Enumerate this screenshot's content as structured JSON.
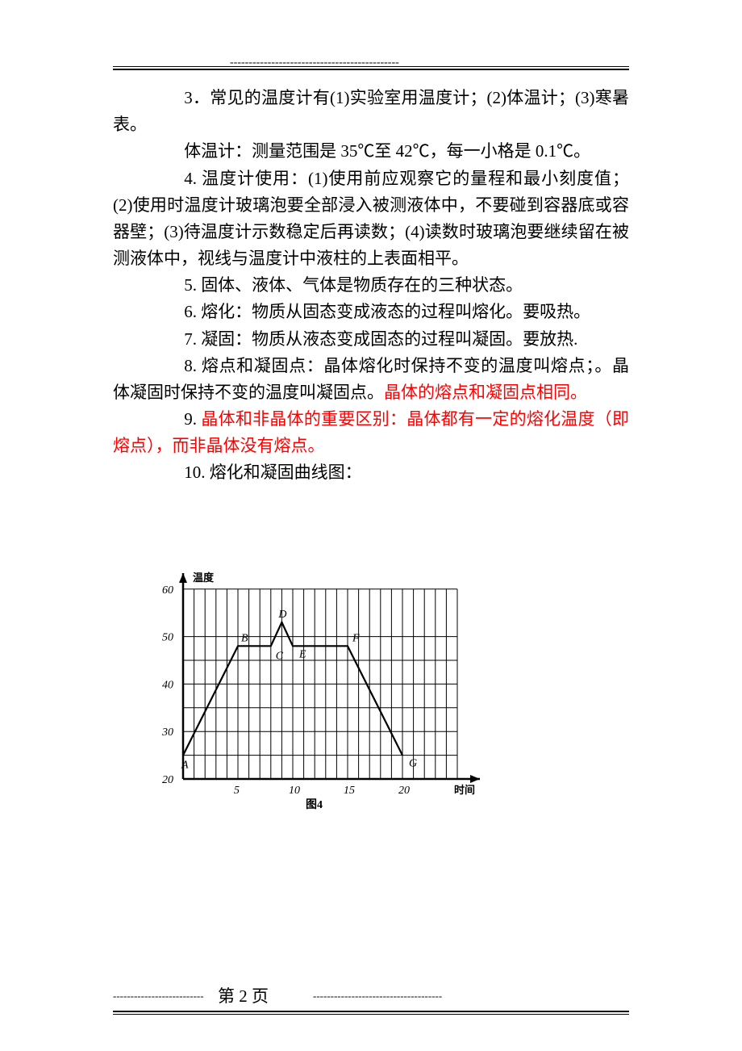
{
  "header": {
    "dashes": "---------------------------------------------"
  },
  "paragraphs": {
    "p3": "3．常见的温度计有(1)实验室用温度计；(2)体温计；(3)寒暑表。",
    "p3b": "体温计：测量范围是 35℃至 42℃，每一小格是 0.1℃。",
    "p4": "4. 温度计使用：(1)使用前应观察它的量程和最小刻度值；(2)使用时温度计玻璃泡要全部浸入被测液体中，不要碰到容器底或容器壁；(3)待温度计示数稳定后再读数；(4)读数时玻璃泡要继续留在被测液体中，视线与温度计中液柱的上表面相平。",
    "p5": "5. 固体、液体、气体是物质存在的三种状态。",
    "p6": "6. 熔化：物质从固态变成液态的过程叫熔化。要吸热。",
    "p7": "7. 凝固：物质从液态变成固态的过程叫凝固。要放热.",
    "p8a": "8. 熔点和凝固点：晶体熔化时保持不变的温度叫熔点；。晶体凝固时保持不变的温度叫凝固点。",
    "p8b": "晶体的熔点和凝固点相同。",
    "p9a": "9. ",
    "p9b": "晶体和非晶体的重要区别：晶体都有一定的熔化温度（即熔点），而非晶体没有熔点。",
    "p10": "10. 熔化和凝固曲线图："
  },
  "chart": {
    "type": "line",
    "y_axis_label": "温度",
    "x_axis_label": "时间",
    "caption": "图4",
    "y_ticks": [
      20,
      30,
      40,
      50,
      60
    ],
    "x_ticks": [
      5,
      10,
      15,
      20
    ],
    "y_range": [
      20,
      62
    ],
    "x_range": [
      0,
      25
    ],
    "grid_x_minor": [
      1,
      2,
      3,
      4,
      5,
      6,
      7,
      8,
      9,
      10,
      11,
      12,
      13,
      14,
      15,
      16,
      17,
      18,
      19,
      20,
      21,
      22,
      23,
      24,
      25
    ],
    "grid_y_lines": [
      20,
      25,
      30,
      35,
      40,
      45,
      50,
      60
    ],
    "line_color": "#000000",
    "grid_color": "#000000",
    "background": "#ffffff",
    "points": {
      "A": {
        "x": 0,
        "y": 25,
        "label": "A"
      },
      "B": {
        "x": 5,
        "y": 48,
        "label": "B"
      },
      "C": {
        "x": 8,
        "y": 48,
        "label": "C"
      },
      "D": {
        "x": 9,
        "y": 53,
        "label": "D"
      },
      "E": {
        "x": 10,
        "y": 48,
        "label": "E"
      },
      "F": {
        "x": 15,
        "y": 48,
        "label": "F"
      },
      "G": {
        "x": 20,
        "y": 25,
        "label": "G"
      }
    },
    "polyline": [
      [
        0,
        25
      ],
      [
        5,
        48
      ],
      [
        8,
        48
      ],
      [
        9,
        53
      ],
      [
        10,
        48
      ],
      [
        15,
        48
      ],
      [
        20,
        25
      ]
    ]
  },
  "footer": {
    "page_label": "第  2  页",
    "dashes_left": "--------------------------",
    "dashes_right": "-------------------------------------"
  },
  "colors": {
    "text": "#000000",
    "highlight": "#ff0000",
    "background": "#ffffff"
  }
}
